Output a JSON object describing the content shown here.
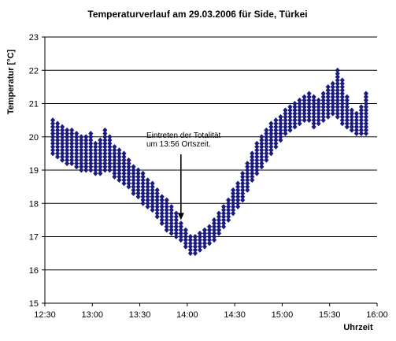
{
  "chart_data": {
    "type": "scatter",
    "title": "Temperaturverlauf am 29.03.2006 für Side, Türkei",
    "xlabel": "Uhrzeit",
    "ylabel": "Temperatur [°C]",
    "xlim": [
      "12:30",
      "16:00"
    ],
    "ylim": [
      15,
      23
    ],
    "x_ticks": [
      "12:30",
      "13:00",
      "13:30",
      "14:00",
      "14:30",
      "15:00",
      "15:30",
      "16:00"
    ],
    "y_ticks": [
      15,
      16,
      17,
      18,
      19,
      20,
      21,
      22,
      23
    ],
    "grid": "horizontal",
    "marker": "diamond",
    "color": "#1a1a80",
    "annotation": {
      "lines": [
        "Eintreten der Totalität",
        "um 13:56 Ortszeit."
      ],
      "arrow_to": [
        "13:56",
        17.5
      ]
    },
    "series": [
      {
        "x": [
          "12:35",
          "12:38",
          "12:41",
          "12:44",
          "12:47",
          "12:50",
          "12:53",
          "12:56",
          "12:59",
          "13:02",
          "13:05",
          "13:08",
          "13:11",
          "13:14",
          "13:17",
          "13:20",
          "13:23",
          "13:26",
          "13:29",
          "13:32",
          "13:35",
          "13:38",
          "13:41",
          "13:44",
          "13:47",
          "13:50",
          "13:53",
          "13:56",
          "13:59",
          "14:02",
          "14:05",
          "14:08",
          "14:11",
          "14:14",
          "14:17",
          "14:20",
          "14:23",
          "14:26",
          "14:29",
          "14:32",
          "14:35",
          "14:38",
          "14:41",
          "14:44",
          "14:47",
          "14:50",
          "14:53",
          "14:56",
          "14:59",
          "15:02",
          "15:05",
          "15:08",
          "15:11",
          "15:14",
          "15:17",
          "15:20",
          "15:23",
          "15:26",
          "15:29",
          "15:32",
          "15:35",
          "15:38",
          "15:41",
          "15:44",
          "15:47",
          "15:50",
          "15:53"
        ],
        "y_min": [
          19.5,
          19.4,
          19.3,
          19.2,
          19.2,
          19.1,
          19.0,
          19.0,
          19.0,
          18.9,
          18.9,
          19.0,
          19.0,
          18.8,
          18.7,
          18.6,
          18.5,
          18.3,
          18.2,
          18.0,
          17.9,
          17.8,
          17.6,
          17.4,
          17.2,
          17.1,
          17.0,
          16.9,
          16.7,
          16.5,
          16.5,
          16.6,
          16.7,
          16.8,
          16.9,
          17.1,
          17.3,
          17.5,
          17.7,
          17.9,
          18.1,
          18.4,
          18.7,
          18.9,
          19.1,
          19.3,
          19.5,
          19.7,
          19.9,
          20.1,
          20.2,
          20.3,
          20.4,
          20.5,
          20.5,
          20.3,
          20.4,
          20.5,
          20.6,
          20.7,
          20.6,
          20.4,
          20.3,
          20.2,
          20.1,
          20.1,
          20.1
        ],
        "y_max": [
          20.5,
          20.4,
          20.3,
          20.2,
          20.2,
          20.1,
          20.0,
          20.0,
          20.1,
          19.8,
          19.9,
          20.2,
          20.0,
          19.7,
          19.6,
          19.5,
          19.3,
          19.1,
          19.0,
          18.9,
          18.7,
          18.6,
          18.4,
          18.2,
          18.1,
          17.9,
          17.7,
          17.4,
          17.2,
          17.0,
          17.0,
          17.1,
          17.2,
          17.3,
          17.5,
          17.7,
          17.9,
          18.1,
          18.4,
          18.6,
          18.9,
          19.2,
          19.5,
          19.8,
          20.0,
          20.2,
          20.4,
          20.5,
          20.6,
          20.8,
          20.9,
          21.0,
          21.1,
          21.2,
          21.3,
          21.2,
          21.1,
          21.3,
          21.5,
          21.6,
          22.0,
          21.7,
          21.2,
          20.8,
          20.7,
          20.9,
          21.3
        ]
      }
    ]
  }
}
